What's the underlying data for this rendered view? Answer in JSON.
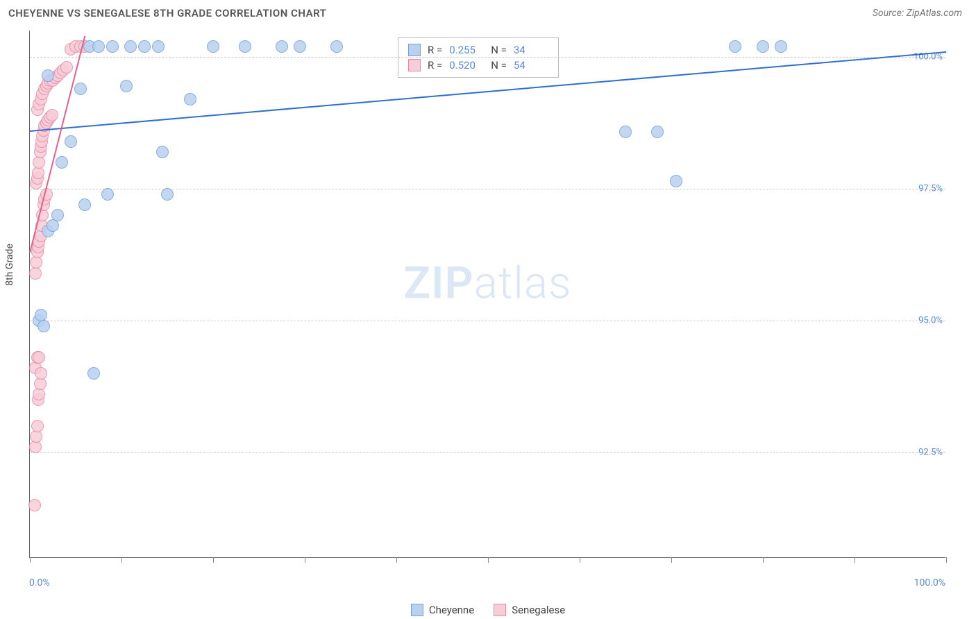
{
  "header": {
    "title": "CHEYENNE VS SENEGALESE 8TH GRADE CORRELATION CHART",
    "source": "Source: ZipAtlas.com"
  },
  "watermark": {
    "zip": "ZIP",
    "atlas": "atlas"
  },
  "chart": {
    "type": "scatter",
    "y_axis_title": "8th Grade",
    "xlim": [
      0,
      100
    ],
    "ylim": [
      90.5,
      100.5
    ],
    "x_axis_labels": {
      "min": "0.0%",
      "max": "100.0%"
    },
    "y_ticks": [
      92.5,
      95.0,
      97.5,
      100.0
    ],
    "y_tick_labels": [
      "92.5%",
      "95.0%",
      "97.5%",
      "100.0%"
    ],
    "x_tick_positions": [
      0,
      10,
      20,
      30,
      40,
      50,
      60,
      70,
      80,
      90,
      100
    ],
    "grid_color": "#cccccc",
    "background_color": "#ffffff",
    "marker_radius": 9,
    "marker_border_width": 1.5,
    "series": [
      {
        "name": "Cheyenne",
        "fill_color": "#b9d1ef",
        "border_color": "#6ea0dd",
        "trend_color": "#2f6fd0",
        "R": "0.255",
        "N": "34",
        "trend": {
          "x1": 0,
          "y1": 98.6,
          "x2": 100,
          "y2": 100.1
        },
        "points": [
          [
            1.0,
            95.0
          ],
          [
            1.2,
            95.1
          ],
          [
            1.5,
            94.9
          ],
          [
            2.0,
            96.7
          ],
          [
            2.5,
            96.8
          ],
          [
            3.0,
            97.0
          ],
          [
            3.5,
            98.0
          ],
          [
            4.5,
            98.4
          ],
          [
            5.5,
            99.4
          ],
          [
            6.0,
            97.2
          ],
          [
            6.5,
            100.2
          ],
          [
            7.5,
            100.2
          ],
          [
            8.5,
            97.4
          ],
          [
            9.0,
            100.2
          ],
          [
            10.5,
            99.45
          ],
          [
            11.0,
            100.2
          ],
          [
            12.5,
            100.2
          ],
          [
            14.0,
            100.2
          ],
          [
            14.5,
            98.2
          ],
          [
            15.0,
            97.4
          ],
          [
            17.5,
            99.2
          ],
          [
            20.0,
            100.2
          ],
          [
            23.5,
            100.2
          ],
          [
            27.5,
            100.2
          ],
          [
            29.5,
            100.2
          ],
          [
            33.5,
            100.2
          ],
          [
            65.0,
            98.58
          ],
          [
            68.5,
            98.58
          ],
          [
            70.5,
            97.65
          ],
          [
            77.0,
            100.2
          ],
          [
            80.0,
            100.2
          ],
          [
            82.0,
            100.2
          ],
          [
            2.0,
            99.65
          ],
          [
            7.0,
            94.0
          ]
        ]
      },
      {
        "name": "Senegalese",
        "fill_color": "#f7cdd8",
        "border_color": "#e88aa6",
        "trend_color": "#e85f8a",
        "R": "0.520",
        "N": "54",
        "trend": {
          "x1": 0,
          "y1": 96.3,
          "x2": 6.0,
          "y2": 100.4
        },
        "points": [
          [
            0.5,
            91.5
          ],
          [
            0.6,
            92.6
          ],
          [
            0.7,
            92.8
          ],
          [
            0.8,
            93.0
          ],
          [
            0.9,
            93.5
          ],
          [
            1.0,
            93.6
          ],
          [
            1.1,
            93.8
          ],
          [
            0.6,
            94.1
          ],
          [
            0.8,
            94.3
          ],
          [
            1.0,
            94.3
          ],
          [
            1.2,
            94.0
          ],
          [
            0.6,
            95.9
          ],
          [
            0.7,
            96.1
          ],
          [
            0.8,
            96.3
          ],
          [
            0.9,
            96.4
          ],
          [
            1.0,
            96.5
          ],
          [
            1.2,
            96.6
          ],
          [
            1.3,
            96.8
          ],
          [
            1.4,
            97.0
          ],
          [
            1.5,
            97.2
          ],
          [
            1.6,
            97.3
          ],
          [
            1.8,
            97.4
          ],
          [
            0.7,
            97.6
          ],
          [
            0.8,
            97.7
          ],
          [
            0.9,
            97.8
          ],
          [
            1.0,
            98.0
          ],
          [
            1.1,
            98.2
          ],
          [
            1.2,
            98.3
          ],
          [
            1.3,
            98.4
          ],
          [
            1.4,
            98.5
          ],
          [
            1.5,
            98.6
          ],
          [
            1.6,
            98.7
          ],
          [
            1.8,
            98.75
          ],
          [
            2.0,
            98.8
          ],
          [
            2.2,
            98.85
          ],
          [
            2.4,
            98.9
          ],
          [
            0.8,
            99.0
          ],
          [
            1.0,
            99.1
          ],
          [
            1.2,
            99.2
          ],
          [
            1.4,
            99.3
          ],
          [
            1.6,
            99.4
          ],
          [
            1.8,
            99.45
          ],
          [
            2.0,
            99.5
          ],
          [
            2.2,
            99.55
          ],
          [
            2.5,
            99.55
          ],
          [
            2.8,
            99.6
          ],
          [
            3.0,
            99.65
          ],
          [
            3.3,
            99.7
          ],
          [
            3.6,
            99.75
          ],
          [
            4.0,
            99.8
          ],
          [
            4.5,
            100.15
          ],
          [
            5.0,
            100.2
          ],
          [
            5.5,
            100.2
          ],
          [
            6.0,
            100.2
          ]
        ]
      }
    ]
  },
  "legend": {
    "items": [
      {
        "label": "Cheyenne",
        "fill": "#b9d1ef",
        "border": "#6ea0dd"
      },
      {
        "label": "Senegalese",
        "fill": "#f7cdd8",
        "border": "#e88aa6"
      }
    ]
  }
}
